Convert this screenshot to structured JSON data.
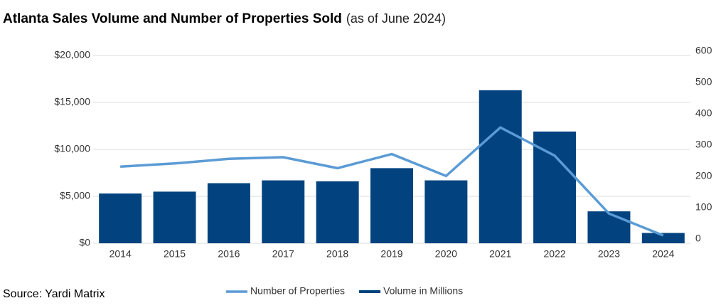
{
  "chart_data": {
    "type": "combo",
    "title": "Atlanta Sales Volume and Number of Properties Sold",
    "subtitle": "(as of June 2024)",
    "source": "Source: Yardi Matrix",
    "categories": [
      "2014",
      "2015",
      "2016",
      "2017",
      "2018",
      "2019",
      "2020",
      "2021",
      "2022",
      "2023",
      "2024"
    ],
    "series": [
      {
        "name": "Number of Properties",
        "type": "line",
        "axis": "y2",
        "color": "#5b9bd5",
        "values": [
          245,
          255,
          270,
          275,
          240,
          285,
          215,
          370,
          280,
          95,
          25
        ]
      },
      {
        "name": "Volume in Millions",
        "type": "bar",
        "color": "#02437f",
        "values": [
          5300,
          5500,
          6400,
          6700,
          6600,
          8000,
          6700,
          16300,
          11900,
          3400,
          1100
        ]
      }
    ],
    "ylim": [
      0,
      20000
    ],
    "yticks": [
      {
        "value": 0,
        "label": "$0"
      },
      {
        "value": 5000,
        "label": "$5,000"
      },
      {
        "value": 10000,
        "label": "$10,000"
      },
      {
        "value": 15000,
        "label": "$15,000"
      },
      {
        "value": 20000,
        "label": "$20,000"
      }
    ],
    "y2lim": [
      0,
      600
    ],
    "y2ticks": [
      0,
      100,
      200,
      300,
      400,
      500,
      600
    ],
    "grid": true
  }
}
